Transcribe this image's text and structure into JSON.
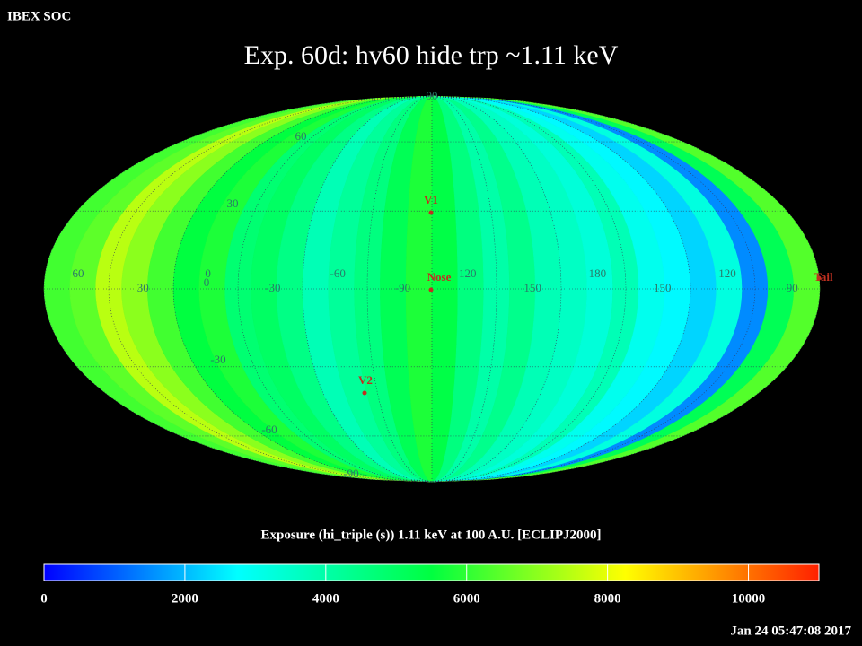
{
  "header": {
    "org": "IBEX SOC",
    "title": "Exp.   60d: hv60 hide trp ~1.11 keV",
    "timestamp": "Jan 24 05:47:08 2017"
  },
  "map": {
    "projection": "mollweide",
    "strips": [
      6200,
      6500,
      7500,
      7000,
      6200,
      5500,
      5800,
      4800,
      5000,
      4500,
      3800,
      4200,
      4600,
      5200,
      5800,
      5400,
      4600,
      4000,
      4400,
      3800,
      3600,
      3300,
      3800,
      3000,
      2700,
      2300,
      3200,
      1500,
      5200,
      6400
    ],
    "graticule": {
      "lat_labels": [
        90,
        60,
        30,
        0,
        -30,
        -60,
        -90
      ],
      "lon_labels": [
        60,
        30,
        0,
        -30,
        -60,
        -90,
        120,
        150,
        180,
        150,
        120,
        90
      ]
    },
    "markers": [
      {
        "label": "V1"
      },
      {
        "label": "Nose"
      },
      {
        "label": "V2"
      },
      {
        "label": "Tail"
      }
    ]
  },
  "colorbar": {
    "label": "Exposure (hi_triple (s))  1.11 keV at 100 A.U. [ECLIPJ2000]",
    "lim": [
      0,
      11000
    ],
    "ticks": [
      0,
      2000,
      4000,
      6000,
      8000,
      10000
    ],
    "colors": [
      "#0000ff",
      "#00ffff",
      "#00ff40",
      "#ffff00",
      "#ff2000"
    ]
  }
}
